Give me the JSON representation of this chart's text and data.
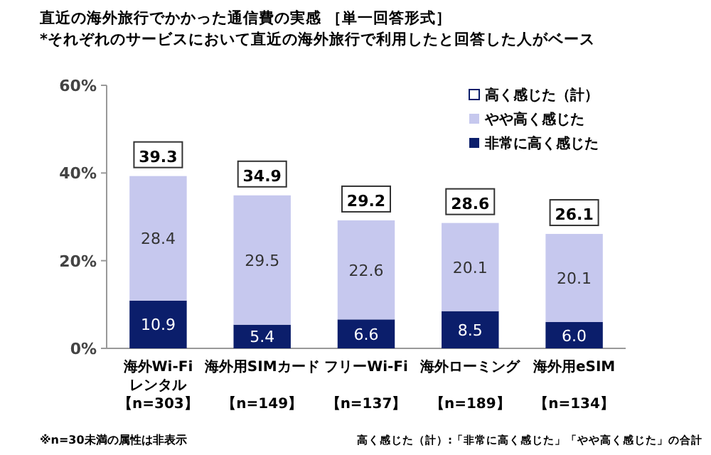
{
  "chart_data": {
    "type": "bar",
    "stacked": true,
    "title": "直近の海外旅行でかかった通信費の実感 ［単一回答形式］",
    "subtitle": "*それぞれのサービスにおいて直近の海外旅行で利用したと回答した人がベース",
    "categories": [
      "海外Wi-Fiレンタル【n=303】",
      "海外用SIMカード【n=149】",
      "フリーWi-Fi【n=137】",
      "海外ローミング【n=189】",
      "海外用eSIM【n=134】"
    ],
    "series": [
      {
        "name": "非常に高く感じた",
        "color": "#0b1e6b",
        "values": [
          10.9,
          5.4,
          6.6,
          8.5,
          6.0
        ],
        "value_labels": [
          "10.9",
          "5.4",
          "6.6",
          "8.5",
          "6.0"
        ]
      },
      {
        "name": "やや高く感じた",
        "color": "#c6c8ee",
        "values": [
          28.4,
          29.5,
          22.6,
          20.1,
          20.1
        ],
        "value_labels": [
          "28.4",
          "29.5",
          "22.6",
          "20.1",
          "20.1"
        ]
      }
    ],
    "totals": [
      "39.3",
      "34.9",
      "29.2",
      "28.6",
      "26.1"
    ],
    "ylim": [
      0,
      60
    ],
    "yticks": [
      {
        "value": 0,
        "label": "0%"
      },
      {
        "value": 20,
        "label": "20%"
      },
      {
        "value": 40,
        "label": "40%"
      },
      {
        "value": 60,
        "label": "60%"
      }
    ],
    "legend": "top right",
    "annotations": [
      "高く感じた（計）",
      "※n=30未満の属性は非表示",
      "高く感じた（計）:「非常に高く感じた」「やや高く感じた」の合計"
    ]
  }
}
